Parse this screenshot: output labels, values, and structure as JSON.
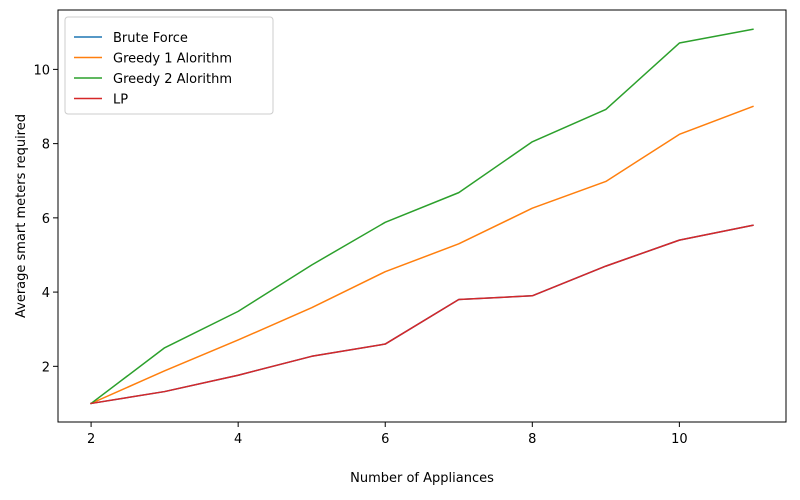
{
  "chart_data": {
    "type": "line",
    "xlabel": "Number of Appliances",
    "ylabel": "Average smart meters required",
    "xlim": [
      1.55,
      11.45
    ],
    "ylim": [
      0.5,
      11.6
    ],
    "xticks": [
      2,
      4,
      6,
      8,
      10
    ],
    "yticks": [
      2,
      4,
      6,
      8,
      10
    ],
    "grid": false,
    "legend_position": "top-left",
    "x": [
      2,
      3,
      4,
      5,
      6,
      7,
      8,
      9,
      10,
      11
    ],
    "series": [
      {
        "name": "Brute Force",
        "color": "#1f77b4",
        "values": [
          1.0,
          1.32,
          1.76,
          2.27,
          2.6,
          3.8,
          3.9,
          4.7,
          5.4,
          5.8
        ]
      },
      {
        "name": "Greedy 1 Alorithm",
        "color": "#ff7f0e",
        "values": [
          1.0,
          1.88,
          2.71,
          3.58,
          4.55,
          5.3,
          6.26,
          6.98,
          8.25,
          9.0
        ]
      },
      {
        "name": "Greedy 2 Alorithm",
        "color": "#2ca02c",
        "values": [
          1.0,
          2.5,
          3.48,
          4.73,
          5.88,
          6.68,
          8.05,
          8.92,
          10.71,
          11.08
        ]
      },
      {
        "name": "LP",
        "color": "#d62728",
        "values": [
          1.0,
          1.32,
          1.76,
          2.27,
          2.6,
          3.8,
          3.9,
          4.7,
          5.4,
          5.8
        ]
      }
    ]
  }
}
